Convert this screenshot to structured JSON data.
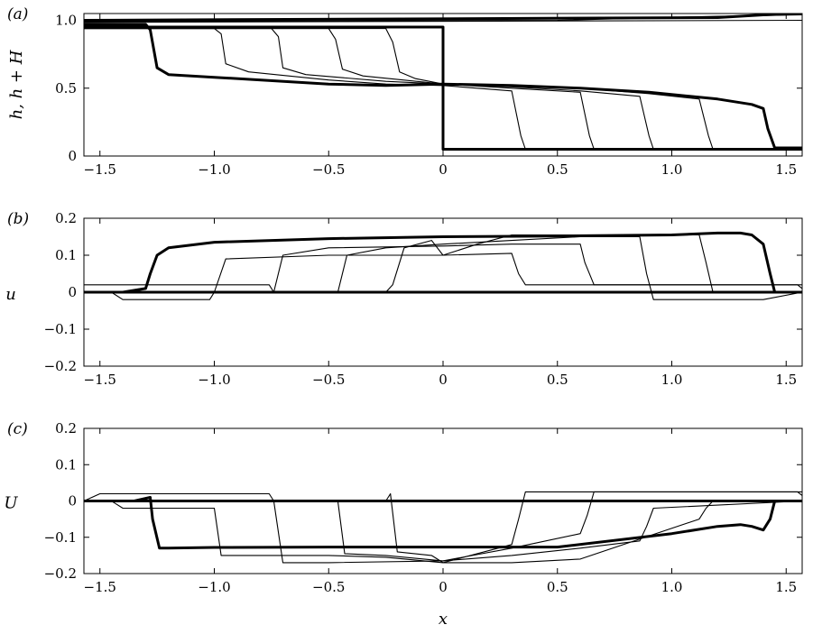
{
  "chart_data": [
    {
      "type": "line",
      "panel": "(a)",
      "xlabel": "",
      "ylabel": "h, h + H",
      "xlim": [
        -1.57,
        1.57
      ],
      "ylim": [
        0,
        1.05
      ],
      "xticks": [
        "−1.5",
        "−1.0",
        "−0.5",
        "0",
        "0.5",
        "1.0",
        "1.5"
      ],
      "yticks": [
        "0",
        "0.5",
        "1.0"
      ],
      "series": [
        {
          "role": "initial",
          "x": [
            -1.57,
            0,
            0,
            1.57
          ],
          "y": [
            0.95,
            0.95,
            0.05,
            0.05
          ]
        },
        {
          "role": "final",
          "x": [
            -1.57,
            -1.3,
            -1.28,
            -1.25,
            -1.2,
            -1.0,
            -0.5,
            -0.25,
            0,
            0.3,
            0.6,
            0.9,
            1.2,
            1.35,
            1.4,
            1.42,
            1.45,
            1.57
          ],
          "y": [
            0.97,
            0.97,
            0.93,
            0.65,
            0.6,
            0.58,
            0.53,
            0.52,
            0.53,
            0.52,
            0.5,
            0.47,
            0.42,
            0.38,
            0.35,
            0.2,
            0.06,
            0.06
          ]
        },
        {
          "role": "final-surface",
          "x": [
            -1.57,
            1.2,
            1.4,
            1.57
          ],
          "y": [
            1.0,
            1.02,
            1.04,
            1.05
          ]
        },
        {
          "role": "intermediate",
          "x": [
            -1.57,
            -1.0,
            -0.97,
            -0.95,
            -0.85,
            -0.5,
            -0.25,
            0,
            0.3,
            0.34,
            0.36,
            1.57
          ],
          "y": [
            0.94,
            0.94,
            0.9,
            0.68,
            0.62,
            0.56,
            0.53,
            0.52,
            0.48,
            0.15,
            0.05,
            0.05
          ]
        },
        {
          "role": "intermediate",
          "x": [
            -1.57,
            -0.75,
            -0.72,
            -0.7,
            -0.6,
            -0.25,
            0,
            0.3,
            0.6,
            0.64,
            0.66,
            1.57
          ],
          "y": [
            0.94,
            0.94,
            0.88,
            0.65,
            0.6,
            0.55,
            0.53,
            0.5,
            0.47,
            0.15,
            0.05,
            0.05
          ]
        },
        {
          "role": "intermediate",
          "x": [
            -1.57,
            -0.5,
            -0.47,
            -0.44,
            -0.35,
            0,
            0.3,
            0.6,
            0.86,
            0.9,
            0.92,
            1.57
          ],
          "y": [
            0.94,
            0.94,
            0.86,
            0.64,
            0.59,
            0.53,
            0.51,
            0.48,
            0.44,
            0.15,
            0.05,
            0.05
          ]
        },
        {
          "role": "intermediate",
          "x": [
            -1.57,
            -0.25,
            -0.22,
            -0.19,
            -0.12,
            0,
            0.3,
            0.6,
            0.9,
            1.12,
            1.16,
            1.18,
            1.57
          ],
          "y": [
            0.94,
            0.94,
            0.84,
            0.62,
            0.57,
            0.53,
            0.52,
            0.5,
            0.46,
            0.42,
            0.15,
            0.05,
            0.05
          ]
        },
        {
          "role": "intermediate-surface",
          "x": [
            -1.57,
            0.5,
            1.2,
            1.57
          ],
          "y": [
            0.99,
            1.0,
            1.03,
            1.04
          ]
        },
        {
          "role": "intermediate-surface",
          "x": [
            -1.57,
            1.57
          ],
          "y": [
            0.985,
            1.0
          ]
        }
      ]
    },
    {
      "type": "line",
      "panel": "(b)",
      "xlabel": "",
      "ylabel": "u",
      "xlim": [
        -1.57,
        1.57
      ],
      "ylim": [
        -0.2,
        0.2
      ],
      "xticks": [
        "−1.5",
        "−1.0",
        "−0.5",
        "0",
        "0.5",
        "1.0",
        "1.5"
      ],
      "yticks": [
        "−0.2",
        "−0.1",
        "0",
        "0.1",
        "0.2"
      ],
      "series": [
        {
          "role": "initial",
          "x": [
            -1.57,
            1.57
          ],
          "y": [
            0,
            0
          ]
        },
        {
          "role": "final",
          "x": [
            -1.57,
            -1.4,
            -1.3,
            -1.28,
            -1.25,
            -1.2,
            -1.0,
            -0.5,
            0,
            0.5,
            1.0,
            1.2,
            1.3,
            1.35,
            1.4,
            1.43,
            1.45,
            1.57
          ],
          "y": [
            0,
            0.0,
            0.01,
            0.05,
            0.1,
            0.12,
            0.135,
            0.145,
            0.15,
            0.152,
            0.155,
            0.16,
            0.16,
            0.155,
            0.13,
            0.05,
            0.0,
            0.0
          ]
        },
        {
          "role": "intermediate",
          "x": [
            -1.57,
            -1.45,
            -1.4,
            -1.02,
            -1.0,
            -0.95,
            -0.5,
            0,
            0.3,
            0.33,
            0.36,
            1.2,
            1.55,
            1.57
          ],
          "y": [
            0.0,
            0.0,
            -0.02,
            -0.02,
            0.0,
            0.09,
            0.1,
            0.1,
            0.105,
            0.05,
            0.02,
            0.02,
            0.02,
            0.01
          ]
        },
        {
          "role": "intermediate",
          "x": [
            -1.57,
            -0.76,
            -0.74,
            -0.7,
            -0.5,
            0,
            0.3,
            0.6,
            0.62,
            0.66,
            1.57
          ],
          "y": [
            0.02,
            0.02,
            0.0,
            0.1,
            0.12,
            0.125,
            0.13,
            0.13,
            0.08,
            0.02,
            0.02
          ]
        },
        {
          "role": "intermediate",
          "x": [
            -1.57,
            -0.48,
            -0.46,
            -0.42,
            -0.25,
            0,
            0.3,
            0.6,
            0.86,
            0.89,
            0.92,
            1.4,
            1.57
          ],
          "y": [
            0.0,
            0.0,
            0.0,
            0.1,
            0.12,
            0.13,
            0.14,
            0.15,
            0.15,
            0.05,
            -0.02,
            -0.02,
            0.0
          ]
        },
        {
          "role": "intermediate",
          "x": [
            -1.57,
            -0.25,
            -0.22,
            -0.17,
            -0.05,
            0,
            0.05,
            0.15,
            0.3,
            0.6,
            1.12,
            1.15,
            1.18,
            1.57
          ],
          "y": [
            0.0,
            0.0,
            0.02,
            0.12,
            0.14,
            0.1,
            0.11,
            0.13,
            0.155,
            0.155,
            0.155,
            0.08,
            0.0,
            0.0
          ]
        }
      ]
    },
    {
      "type": "line",
      "panel": "(c)",
      "xlabel": "x",
      "ylabel": "U",
      "xlim": [
        -1.57,
        1.57
      ],
      "ylim": [
        -0.2,
        0.2
      ],
      "xticks": [
        "−1.5",
        "−1.0",
        "−0.5",
        "0",
        "0.5",
        "1.0",
        "1.5"
      ],
      "yticks": [
        "−0.2",
        "−0.1",
        "0",
        "0.1",
        "0.2"
      ],
      "series": [
        {
          "role": "initial",
          "x": [
            -1.57,
            1.57
          ],
          "y": [
            0,
            0
          ]
        },
        {
          "role": "final",
          "x": [
            -1.57,
            -1.35,
            -1.28,
            -1.27,
            -1.24,
            -1.2,
            -1.0,
            -0.5,
            0,
            0.5,
            1.0,
            1.2,
            1.3,
            1.35,
            1.4,
            1.43,
            1.45,
            1.57
          ],
          "y": [
            0,
            0.0,
            0.01,
            -0.05,
            -0.13,
            -0.13,
            -0.128,
            -0.127,
            -0.127,
            -0.127,
            -0.09,
            -0.07,
            -0.065,
            -0.07,
            -0.08,
            -0.05,
            0.0,
            0.0
          ]
        },
        {
          "role": "intermediate",
          "x": [
            -1.57,
            -1.45,
            -1.4,
            -1.02,
            -1.0,
            -0.97,
            -0.5,
            -0.25,
            0,
            0.3,
            0.33,
            0.36,
            1.2,
            1.55,
            1.57
          ],
          "y": [
            0.0,
            0.0,
            -0.02,
            -0.02,
            -0.02,
            -0.15,
            -0.15,
            -0.155,
            -0.17,
            -0.12,
            -0.05,
            0.025,
            0.025,
            0.025,
            0.015
          ]
        },
        {
          "role": "intermediate",
          "x": [
            -1.57,
            -1.5,
            -0.76,
            -0.74,
            -0.7,
            -0.5,
            0,
            0.3,
            0.6,
            0.63,
            0.66,
            1.57
          ],
          "y": [
            0.0,
            0.02,
            0.02,
            0.0,
            -0.17,
            -0.17,
            -0.165,
            -0.13,
            -0.09,
            -0.04,
            0.025,
            0.025
          ]
        },
        {
          "role": "intermediate",
          "x": [
            -1.57,
            -0.48,
            -0.46,
            -0.43,
            -0.25,
            0,
            0.3,
            0.6,
            0.86,
            0.89,
            0.92,
            1.57
          ],
          "y": [
            0.0,
            0.0,
            0.0,
            -0.145,
            -0.15,
            -0.165,
            -0.15,
            -0.13,
            -0.11,
            -0.07,
            -0.02,
            0.0
          ]
        },
        {
          "role": "intermediate",
          "x": [
            -1.57,
            -0.25,
            -0.23,
            -0.2,
            -0.05,
            0,
            0.3,
            0.6,
            1.12,
            1.15,
            1.18,
            1.57
          ],
          "y": [
            0.0,
            0.0,
            0.02,
            -0.14,
            -0.15,
            -0.17,
            -0.17,
            -0.16,
            -0.05,
            -0.02,
            0.0,
            0.0
          ]
        }
      ]
    }
  ]
}
